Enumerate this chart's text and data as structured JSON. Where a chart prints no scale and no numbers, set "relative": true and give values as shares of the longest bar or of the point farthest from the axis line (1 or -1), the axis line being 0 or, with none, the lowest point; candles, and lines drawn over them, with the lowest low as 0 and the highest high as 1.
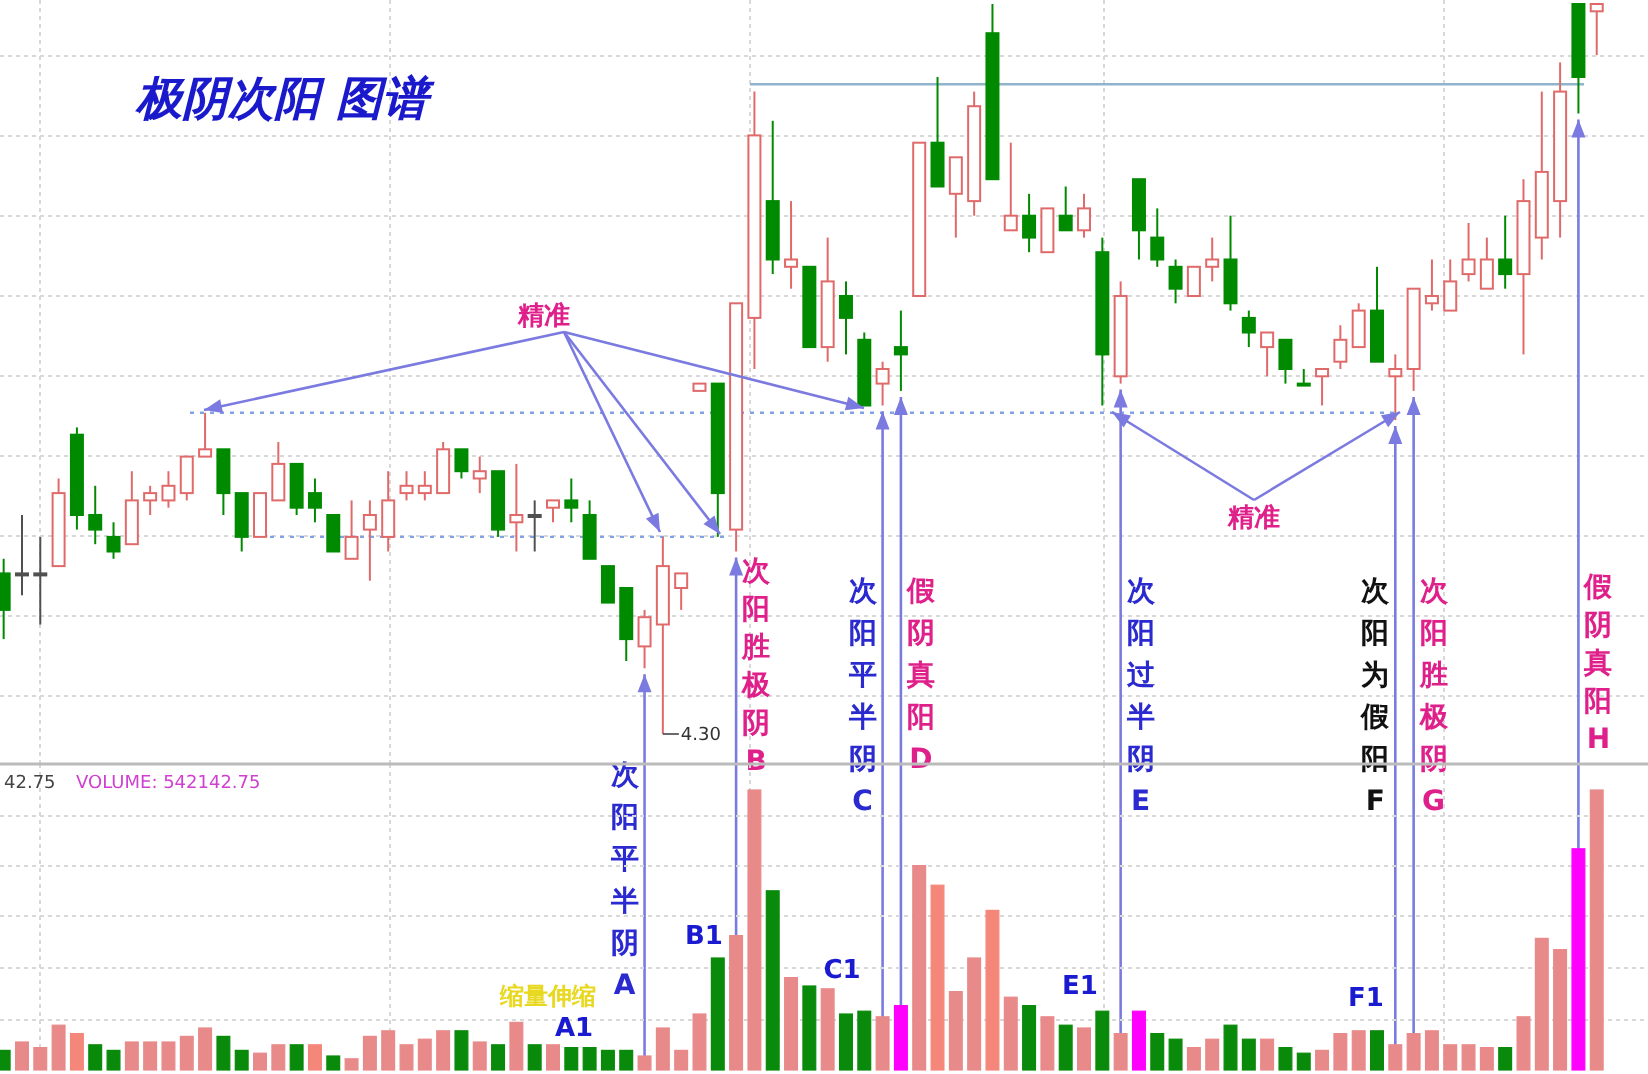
{
  "chart_data": [
    {
      "type": "candlestick",
      "title": "极阴次阳 图谱",
      "relative": true,
      "grid": true,
      "categories": [
        null,
        null,
        null,
        null,
        null,
        null,
        null,
        null,
        null,
        null,
        null,
        null,
        null,
        null,
        null,
        null,
        null,
        null,
        null,
        null,
        null,
        null,
        null,
        null,
        null,
        null,
        null,
        null,
        null,
        null,
        null,
        null,
        null,
        null,
        null,
        null,
        null,
        null,
        null,
        null,
        null,
        null,
        null,
        null,
        null,
        null,
        null,
        null,
        null,
        null,
        null,
        null,
        null,
        null,
        null,
        null,
        null,
        null,
        null,
        null,
        null,
        null,
        null,
        null,
        null,
        null,
        null,
        null,
        null,
        null,
        null,
        null,
        null,
        null,
        null,
        null,
        null,
        null,
        null,
        null,
        null,
        null,
        null,
        null,
        null,
        null,
        null,
        null
      ],
      "ohlc": [
        [
          0.22,
          0.24,
          0.13,
          0.17
        ],
        [
          0.22,
          0.3,
          0.19,
          0.22
        ],
        [
          0.22,
          0.27,
          0.15,
          0.22
        ],
        [
          0.23,
          0.35,
          0.23,
          0.33
        ],
        [
          0.41,
          0.42,
          0.28,
          0.3
        ],
        [
          0.3,
          0.34,
          0.26,
          0.28
        ],
        [
          0.27,
          0.29,
          0.24,
          0.25
        ],
        [
          0.26,
          0.36,
          0.26,
          0.32
        ],
        [
          0.32,
          0.34,
          0.3,
          0.33
        ],
        [
          0.32,
          0.36,
          0.31,
          0.34
        ],
        [
          0.33,
          0.38,
          0.32,
          0.38
        ],
        [
          0.38,
          0.44,
          0.38,
          0.39
        ],
        [
          0.39,
          0.39,
          0.3,
          0.33
        ],
        [
          0.33,
          0.33,
          0.25,
          0.27
        ],
        [
          0.27,
          0.33,
          0.27,
          0.33
        ],
        [
          0.32,
          0.4,
          0.32,
          0.37
        ],
        [
          0.37,
          0.37,
          0.3,
          0.31
        ],
        [
          0.33,
          0.35,
          0.29,
          0.31
        ],
        [
          0.3,
          0.3,
          0.25,
          0.25
        ],
        [
          0.24,
          0.32,
          0.24,
          0.27
        ],
        [
          0.28,
          0.32,
          0.21,
          0.3
        ],
        [
          0.27,
          0.36,
          0.25,
          0.32
        ],
        [
          0.33,
          0.36,
          0.32,
          0.34
        ],
        [
          0.33,
          0.36,
          0.32,
          0.34
        ],
        [
          0.33,
          0.4,
          0.33,
          0.39
        ],
        [
          0.39,
          0.39,
          0.35,
          0.36
        ],
        [
          0.35,
          0.38,
          0.33,
          0.36
        ],
        [
          0.36,
          0.36,
          0.27,
          0.28
        ],
        [
          0.29,
          0.37,
          0.25,
          0.3
        ],
        [
          0.3,
          0.32,
          0.25,
          0.3
        ],
        [
          0.31,
          0.32,
          0.29,
          0.32
        ],
        [
          0.32,
          0.35,
          0.29,
          0.31
        ],
        [
          0.3,
          0.32,
          0.24,
          0.24
        ],
        [
          0.23,
          0.23,
          0.18,
          0.18
        ],
        [
          0.2,
          0.2,
          0.1,
          0.13
        ],
        [
          0.12,
          0.17,
          0.09,
          0.16
        ],
        [
          0.15,
          0.27,
          0,
          0.23
        ],
        [
          0.2,
          0.22,
          0.17,
          0.22
        ],
        [
          0.47,
          0.48,
          0.47,
          0.48
        ],
        [
          0.48,
          0.48,
          0.27,
          0.33
        ],
        [
          0.28,
          0.59,
          0.25,
          0.59
        ],
        [
          0.57,
          0.88,
          0.5,
          0.82
        ],
        [
          0.73,
          0.84,
          0.63,
          0.65
        ],
        [
          0.64,
          0.73,
          0.61,
          0.65
        ],
        [
          0.64,
          0.64,
          0.53,
          0.53
        ],
        [
          0.53,
          0.68,
          0.51,
          0.62
        ],
        [
          0.6,
          0.62,
          0.52,
          0.57
        ],
        [
          0.54,
          0.55,
          0.45,
          0.45
        ],
        [
          0.48,
          0.51,
          0.45,
          0.5
        ],
        [
          0.53,
          0.58,
          0.47,
          0.52
        ],
        [
          0.6,
          0.81,
          0.6,
          0.81
        ],
        [
          0.81,
          0.9,
          0.75,
          0.75
        ],
        [
          0.74,
          0.79,
          0.68,
          0.79
        ],
        [
          0.73,
          0.88,
          0.71,
          0.86
        ],
        [
          0.96,
          1,
          0.76,
          0.76
        ],
        [
          0.69,
          0.81,
          0.69,
          0.71
        ],
        [
          0.71,
          0.74,
          0.66,
          0.68
        ],
        [
          0.66,
          0.72,
          0.66,
          0.72
        ],
        [
          0.71,
          0.75,
          0.69,
          0.69
        ],
        [
          0.69,
          0.74,
          0.68,
          0.72
        ],
        [
          0.66,
          0.68,
          0.45,
          0.52
        ],
        [
          0.49,
          0.62,
          0.48,
          0.6
        ],
        [
          0.76,
          0.76,
          0.65,
          0.69
        ],
        [
          0.68,
          0.72,
          0.64,
          0.65
        ],
        [
          0.64,
          0.65,
          0.59,
          0.61
        ],
        [
          0.6,
          0.64,
          0.6,
          0.64
        ],
        [
          0.64,
          0.68,
          0.62,
          0.65
        ],
        [
          0.65,
          0.71,
          0.58,
          0.59
        ],
        [
          0.57,
          0.58,
          0.53,
          0.55
        ],
        [
          0.53,
          0.55,
          0.49,
          0.55
        ],
        [
          0.54,
          0.54,
          0.48,
          0.5
        ],
        [
          0.48,
          0.5,
          0.48,
          0.48
        ],
        [
          0.49,
          0.5,
          0.45,
          0.5
        ],
        [
          0.51,
          0.56,
          0.5,
          0.54
        ],
        [
          0.53,
          0.59,
          0.53,
          0.58
        ],
        [
          0.58,
          0.64,
          0.51,
          0.51
        ],
        [
          0.49,
          0.52,
          0.43,
          0.5
        ],
        [
          0.5,
          0.61,
          0.47,
          0.61
        ],
        [
          0.59,
          0.65,
          0.58,
          0.6
        ],
        [
          0.58,
          0.65,
          0.58,
          0.62
        ],
        [
          0.63,
          0.7,
          0.62,
          0.65
        ],
        [
          0.61,
          0.68,
          0.61,
          0.65
        ],
        [
          0.65,
          0.71,
          0.61,
          0.63
        ],
        [
          0.63,
          0.76,
          0.52,
          0.73
        ],
        [
          0.68,
          0.88,
          0.65,
          0.77
        ],
        [
          0.73,
          0.92,
          0.68,
          0.88
        ],
        [
          1,
          1,
          0.85,
          0.9
        ],
        [
          0.99,
          1,
          0.93,
          1
        ]
      ],
      "colors": [
        "#008a00",
        "#505050",
        "#505050",
        "#e06a6a",
        "#008a00",
        "#008a00",
        "#008a00",
        "#e06a6a",
        "#e06a6a",
        "#e06a6a",
        "#e06a6a",
        "#e06a6a",
        "#008a00",
        "#008a00",
        "#e06a6a",
        "#e06a6a",
        "#008a00",
        "#008a00",
        "#008a00",
        "#e06a6a",
        "#e06a6a",
        "#e06a6a",
        "#e06a6a",
        "#e06a6a",
        "#e06a6a",
        "#008a00",
        "#e06a6a",
        "#008a00",
        "#e06a6a",
        "#505050",
        "#e06a6a",
        "#008a00",
        "#008a00",
        "#008a00",
        "#008a00",
        "#e06a6a",
        "#e06a6a",
        "#e06a6a",
        "#e06a6a",
        "#008a00",
        "#e06a6a",
        "#e06a6a",
        "#008a00",
        "#e06a6a",
        "#008a00",
        "#e06a6a",
        "#008a00",
        "#008a00",
        "#e06a6a",
        "#008a00",
        "#e06a6a",
        "#008a00",
        "#e06a6a",
        "#e06a6a",
        "#008a00",
        "#e06a6a",
        "#008a00",
        "#e06a6a",
        "#008a00",
        "#e06a6a",
        "#008a00",
        "#e06a6a",
        "#008a00",
        "#008a00",
        "#008a00",
        "#e06a6a",
        "#e06a6a",
        "#008a00",
        "#008a00",
        "#e06a6a",
        "#008a00",
        "#008a00",
        "#e06a6a",
        "#e06a6a",
        "#e06a6a",
        "#008a00",
        "#e06a6a",
        "#e06a6a",
        "#e06a6a",
        "#e06a6a",
        "#e06a6a",
        "#e06a6a",
        "#008a00",
        "#e06a6a",
        "#e06a6a",
        "#e06a6a",
        "#008a00",
        "#e06a6a"
      ],
      "ref_lines": [
        {
          "axis": "y",
          "value": 0.44,
          "color": "#7fa3e6",
          "line_style": "dotted"
        },
        {
          "axis": "y",
          "value": 0.27,
          "color": "#7fa3e6",
          "line_style": "dotted"
        },
        {
          "axis": "y",
          "value": 0.89,
          "color": "#8fb4cc",
          "line_style": "solid"
        }
      ],
      "annotations": [
        "精准",
        "精准",
        "4.30",
        "次阳平半阴A",
        "次阳胜极阴B",
        "次阳平半阴C",
        "假阴真阳D",
        "次阳过半阴E",
        "次阳为假阳F",
        "次阳胜极阴G",
        "假阴真阳H"
      ]
    },
    {
      "type": "bar",
      "relative": true,
      "grid": true,
      "categories": [
        null,
        null,
        null,
        null,
        null,
        null,
        null,
        null,
        null,
        null,
        null,
        null,
        null,
        null,
        null,
        null,
        null,
        null,
        null,
        null,
        null,
        null,
        null,
        null,
        null,
        null,
        null,
        null,
        null,
        null,
        null,
        null,
        null,
        null,
        null,
        null,
        null,
        null,
        null,
        null,
        null,
        null,
        null,
        null,
        null,
        null,
        null,
        null,
        null,
        null,
        null,
        null,
        null,
        null,
        null,
        null,
        null,
        null,
        null,
        null,
        null,
        null,
        null,
        null,
        null,
        null,
        null,
        null,
        null,
        null,
        null,
        null,
        null,
        null,
        null,
        null,
        null,
        null,
        null,
        null,
        null,
        null,
        null,
        null,
        null,
        null,
        null,
        null
      ],
      "values": [
        0.07,
        0.1,
        0.08,
        0.16,
        0.13,
        0.09,
        0.07,
        0.1,
        0.1,
        0.1,
        0.12,
        0.15,
        0.12,
        0.07,
        0.06,
        0.09,
        0.09,
        0.09,
        0.05,
        0.04,
        0.12,
        0.14,
        0.09,
        0.11,
        0.14,
        0.14,
        0.1,
        0.09,
        0.17,
        0.09,
        0.09,
        0.08,
        0.08,
        0.07,
        0.07,
        0.05,
        0.15,
        0.07,
        0.2,
        0.4,
        0.48,
        1,
        0.64,
        0.33,
        0.3,
        0.29,
        0.2,
        0.21,
        0.19,
        0.23,
        0.73,
        0.66,
        0.28,
        0.4,
        0.57,
        0.26,
        0.23,
        0.19,
        0.16,
        0.15,
        0.21,
        0.13,
        0.21,
        0.13,
        0.11,
        0.08,
        0.11,
        0.16,
        0.11,
        0.11,
        0.08,
        0.06,
        0.07,
        0.13,
        0.14,
        0.14,
        0.09,
        0.13,
        0.14,
        0.09,
        0.09,
        0.08,
        0.08,
        0.19,
        0.47,
        0.43,
        0.79,
        1
      ],
      "colors": [
        "#0a8a0a",
        "#e88a8a",
        "#e88a8a",
        "#e88a8a",
        "#f4877a",
        "#0a8a0a",
        "#0a8a0a",
        "#e88a8a",
        "#e88a8a",
        "#e88a8a",
        "#e88a8a",
        "#e88a8a",
        "#0a8a0a",
        "#0a8a0a",
        "#e88a8a",
        "#e88a8a",
        "#0a8a0a",
        "#f4877a",
        "#0a8a0a",
        "#e88a8a",
        "#e88a8a",
        "#e88a8a",
        "#e88a8a",
        "#e88a8a",
        "#e88a8a",
        "#0a8a0a",
        "#e88a8a",
        "#0a8a0a",
        "#e88a8a",
        "#0a8a0a",
        "#e88a8a",
        "#0a8a0a",
        "#0a8a0a",
        "#0a8a0a",
        "#0a8a0a",
        "#e88a8a",
        "#e88a8a",
        "#e88a8a",
        "#e88a8a",
        "#0a8a0a",
        "#e88a8a",
        "#e88a8a",
        "#0a8a0a",
        "#e88a8a",
        "#0a8a0a",
        "#e88a8a",
        "#0a8a0a",
        "#0a8a0a",
        "#e88a8a",
        "#ff00ff",
        "#e88a8a",
        "#f4877a",
        "#e88a8a",
        "#e88a8a",
        "#f4877a",
        "#e88a8a",
        "#0a8a0a",
        "#e88a8a",
        "#0a8a0a",
        "#e88a8a",
        "#0a8a0a",
        "#e88a8a",
        "#ff00ff",
        "#0a8a0a",
        "#0a8a0a",
        "#e88a8a",
        "#e88a8a",
        "#0a8a0a",
        "#0a8a0a",
        "#e88a8a",
        "#0a8a0a",
        "#0a8a0a",
        "#e88a8a",
        "#e88a8a",
        "#e88a8a",
        "#0a8a0a",
        "#e88a8a",
        "#e88a8a",
        "#e88a8a",
        "#e88a8a",
        "#e88a8a",
        "#e88a8a",
        "#0a8a0a",
        "#e88a8a",
        "#e88a8a",
        "#e88a8a",
        "#ff00ff",
        "#e88a8a"
      ],
      "annotations": [
        "42.75",
        "VOLUME: 542142.75",
        "A1",
        "B1",
        "C1",
        "E1",
        "F1",
        "缩量伸缩"
      ]
    }
  ]
}
